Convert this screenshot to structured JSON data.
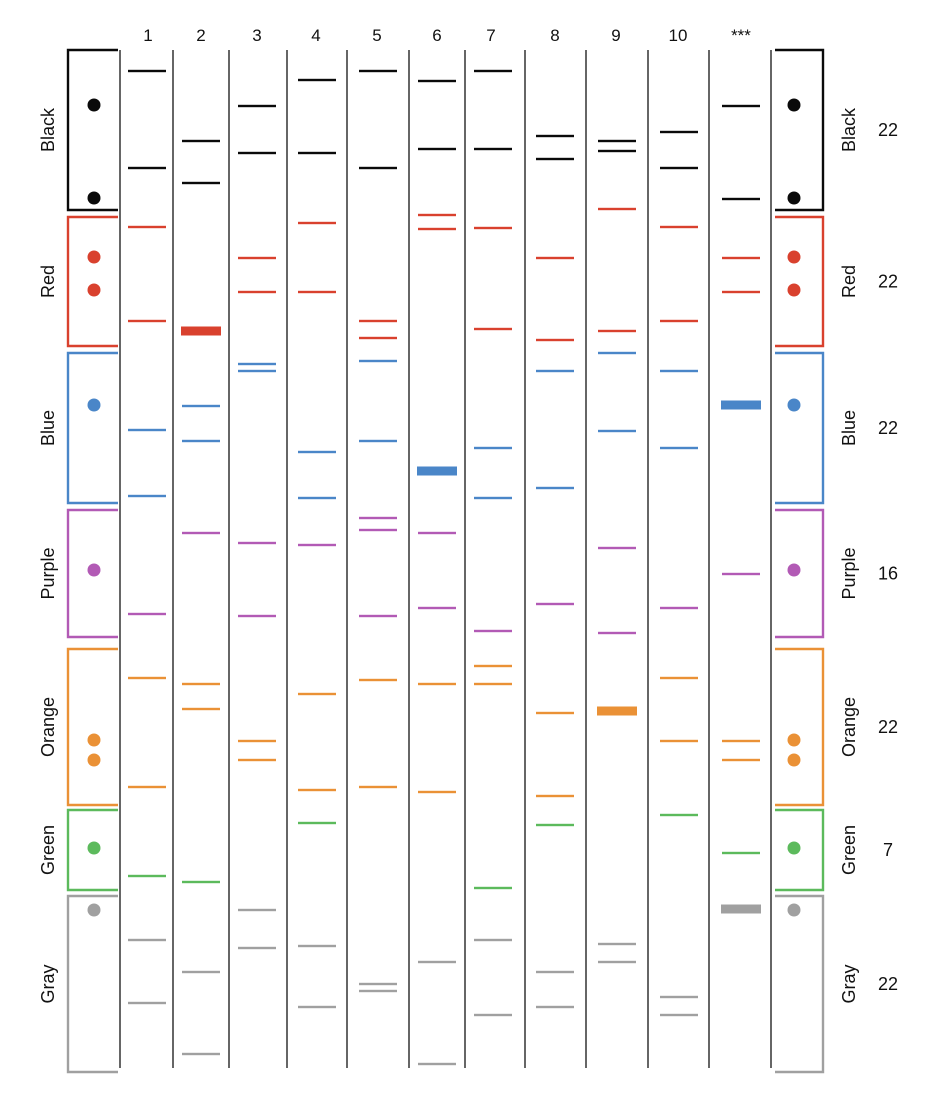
{
  "lane_labels": [
    "1",
    "2",
    "3",
    "4",
    "5",
    "6",
    "7",
    "8",
    "9",
    "10",
    "***"
  ],
  "colors": {
    "black": "#0a0a0a",
    "red": "#d9412e",
    "blue": "#4a86c8",
    "purple": "#b25ab5",
    "orange": "#ea9136",
    "green": "#5cba5c",
    "gray": "#a0a0a0",
    "lane_rule": "#333333"
  },
  "groups": [
    {
      "id": "black",
      "label": "Black",
      "count": "22",
      "color": "#0a0a0a"
    },
    {
      "id": "red",
      "label": "Red",
      "count": "22",
      "color": "#d9412e"
    },
    {
      "id": "blue",
      "label": "Blue",
      "count": "22",
      "color": "#4a86c8"
    },
    {
      "id": "purple",
      "label": "Purple",
      "count": "16",
      "color": "#b25ab5"
    },
    {
      "id": "orange",
      "label": "Orange",
      "count": "22",
      "color": "#ea9136"
    },
    {
      "id": "green",
      "label": "Green",
      "count": "7",
      "color": "#5cba5c"
    },
    {
      "id": "gray",
      "label": "Gray",
      "count": "22",
      "color": "#a0a0a0"
    }
  ]
}
